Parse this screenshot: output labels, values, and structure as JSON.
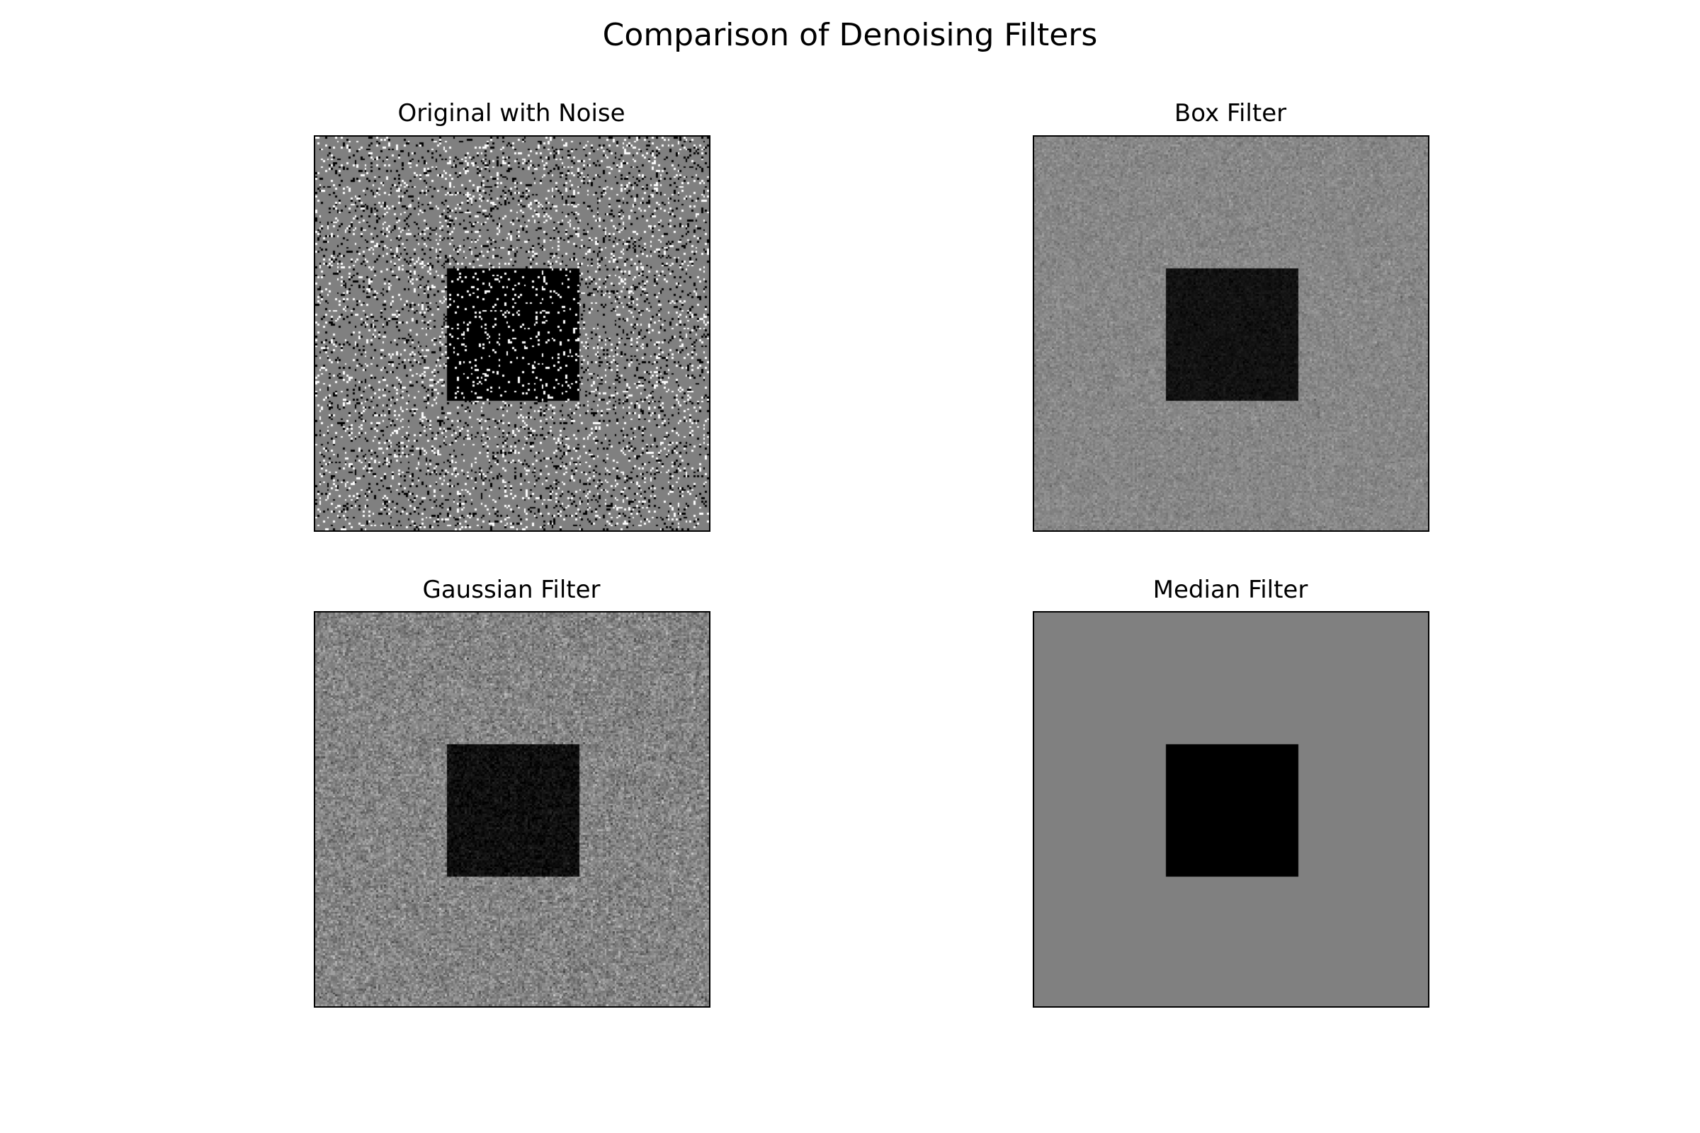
{
  "figure": {
    "title": "Comparison of Denoising Filters"
  },
  "panels": [
    {
      "title": "Original with Noise",
      "filter": "none",
      "background_gray": "#808080",
      "square_color": "#000000",
      "noise": "salt-and-pepper"
    },
    {
      "title": "Box Filter",
      "filter": "box",
      "background_gray": "#808080",
      "square_color": "#111111",
      "noise": "smoothed"
    },
    {
      "title": "Gaussian Filter",
      "filter": "gaussian",
      "background_gray": "#808080",
      "square_color": "#0d0d0d",
      "noise": "fine"
    },
    {
      "title": "Median Filter",
      "filter": "median",
      "background_gray": "#808080",
      "square_color": "#000000",
      "noise": "none"
    }
  ]
}
